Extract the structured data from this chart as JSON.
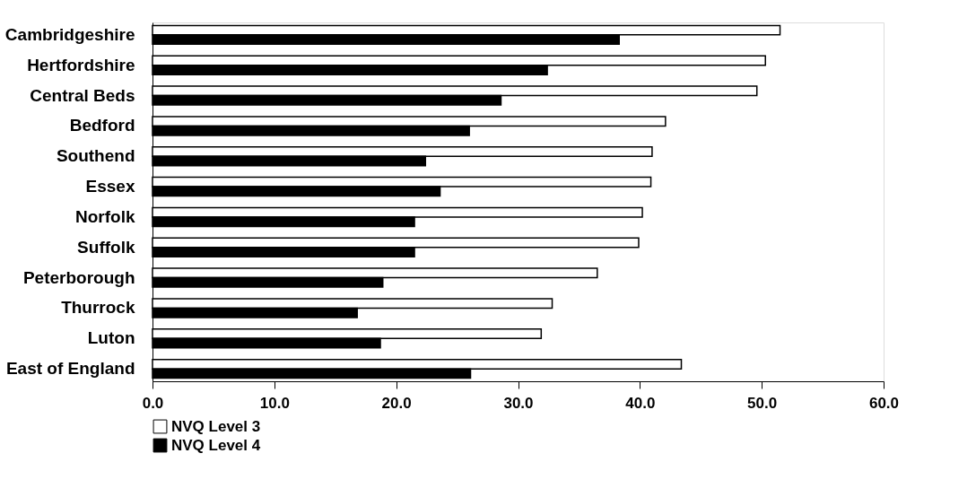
{
  "chart_data": {
    "type": "bar",
    "orientation": "horizontal",
    "categories": [
      "Cambridgeshire",
      "Hertfordshire",
      "Central Beds",
      "Bedford",
      "Southend",
      "Essex",
      "Norfolk",
      "Suffolk",
      "Peterborough",
      "Thurrock",
      "Luton",
      "East of England"
    ],
    "series": [
      {
        "name": "NVQ Level 3",
        "color": "#ffffff",
        "values": [
          51.5,
          50.3,
          49.6,
          42.1,
          41.0,
          40.9,
          40.2,
          39.9,
          36.5,
          32.8,
          31.9,
          43.4
        ]
      },
      {
        "name": "NVQ Level 4",
        "color": "#000000",
        "values": [
          38.3,
          32.4,
          28.6,
          26.0,
          22.4,
          23.6,
          21.5,
          21.5,
          18.9,
          16.8,
          18.7,
          26.1
        ]
      }
    ],
    "xlim": [
      0,
      60
    ],
    "xticks": [
      {
        "value": 0,
        "label": "0.0"
      },
      {
        "value": 10,
        "label": "10.0"
      },
      {
        "value": 20,
        "label": "20.0"
      },
      {
        "value": 30,
        "label": "30.0"
      },
      {
        "value": 40,
        "label": "40.0"
      },
      {
        "value": 50,
        "label": "50.0"
      },
      {
        "value": 60,
        "label": "60.0"
      }
    ],
    "grid": false,
    "legend": "bottom"
  }
}
